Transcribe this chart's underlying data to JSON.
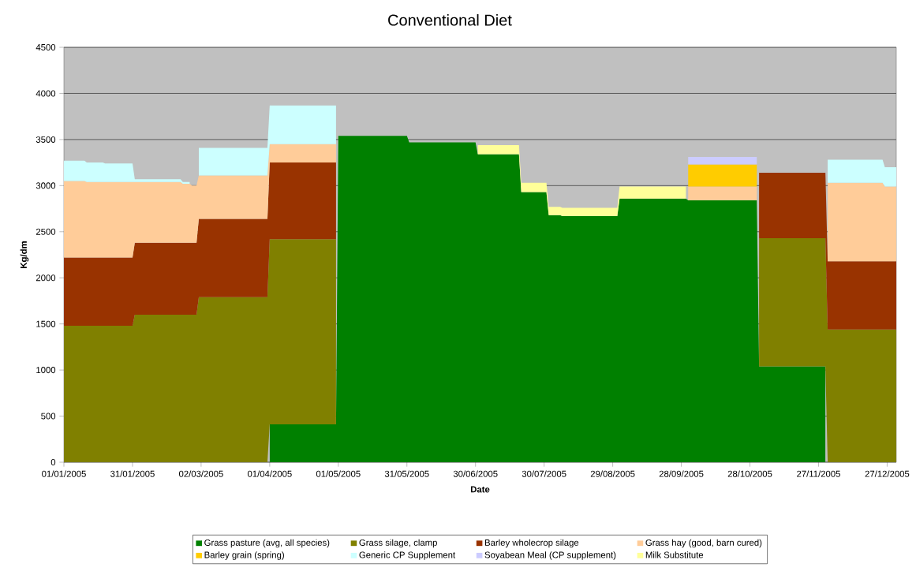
{
  "chart_data": {
    "type": "area",
    "stacked": true,
    "title": "Conventional Diet",
    "xlabel": "Date",
    "ylabel": "Kg/dm",
    "x": [
      "2005-01-01",
      "2005-01-10",
      "2005-01-11",
      "2005-01-18",
      "2005-01-19",
      "2005-01-31",
      "2005-02-01",
      "2005-02-21",
      "2005-02-22",
      "2005-02-25",
      "2005-02-26",
      "2005-02-28",
      "2005-03-01",
      "2005-03-31",
      "2005-04-01",
      "2005-04-30",
      "2005-05-01",
      "2005-05-31",
      "2005-06-01",
      "2005-06-30",
      "2005-07-01",
      "2005-07-19",
      "2005-07-20",
      "2005-07-31",
      "2005-08-01",
      "2005-08-06",
      "2005-08-07",
      "2005-08-31",
      "2005-09-01",
      "2005-09-30",
      "2005-10-01",
      "2005-10-31",
      "2005-11-01",
      "2005-11-30",
      "2005-12-01",
      "2005-12-25",
      "2005-12-26",
      "2005-12-31"
    ],
    "series": [
      {
        "name": "Grass pasture (avg, all species)",
        "color": "#008000",
        "values": [
          null,
          null,
          null,
          null,
          null,
          null,
          null,
          null,
          null,
          null,
          null,
          null,
          null,
          null,
          410,
          410,
          3540,
          3540,
          3470,
          3470,
          3340,
          3340,
          2930,
          2930,
          2680,
          2680,
          2670,
          2670,
          2860,
          2860,
          2840,
          2840,
          1040,
          1040,
          null,
          null,
          null,
          null
        ]
      },
      {
        "name": "Grass silage, clamp",
        "color": "#808000",
        "values": [
          1480,
          1480,
          1480,
          1480,
          1480,
          1480,
          1600,
          1600,
          1600,
          1600,
          1600,
          1600,
          1790,
          1790,
          2010,
          2010,
          null,
          null,
          null,
          null,
          null,
          null,
          null,
          null,
          null,
          null,
          null,
          null,
          null,
          null,
          null,
          null,
          1390,
          1390,
          1440,
          1440,
          1440,
          1440
        ]
      },
      {
        "name": "Barley wholecrop silage",
        "color": "#993300",
        "values": [
          740,
          740,
          740,
          740,
          740,
          740,
          780,
          780,
          780,
          780,
          780,
          780,
          850,
          850,
          830,
          830,
          null,
          null,
          null,
          null,
          null,
          null,
          null,
          null,
          null,
          null,
          null,
          null,
          null,
          null,
          null,
          null,
          710,
          710,
          740,
          740,
          740,
          740
        ]
      },
      {
        "name": "Grass hay (good, barn cured)",
        "color": "#ffcc99",
        "values": [
          830,
          830,
          820,
          820,
          820,
          820,
          660,
          660,
          640,
          640,
          620,
          620,
          470,
          470,
          200,
          200,
          null,
          null,
          null,
          null,
          null,
          null,
          null,
          null,
          null,
          null,
          null,
          null,
          null,
          null,
          150,
          150,
          null,
          null,
          850,
          850,
          810,
          810
        ]
      },
      {
        "name": "Barley grain (spring)",
        "color": "#ffcc00",
        "values": [
          null,
          null,
          null,
          null,
          null,
          null,
          null,
          null,
          null,
          null,
          null,
          null,
          null,
          null,
          null,
          null,
          null,
          null,
          null,
          null,
          null,
          null,
          null,
          null,
          null,
          null,
          null,
          null,
          null,
          null,
          240,
          240,
          null,
          null,
          null,
          null,
          null,
          null
        ]
      },
      {
        "name": "Generic CP Supplement",
        "color": "#ccffff",
        "values": [
          220,
          220,
          210,
          210,
          200,
          200,
          30,
          30,
          20,
          20,
          null,
          null,
          300,
          300,
          420,
          420,
          null,
          null,
          null,
          null,
          null,
          null,
          null,
          null,
          null,
          null,
          null,
          null,
          null,
          null,
          null,
          null,
          null,
          null,
          250,
          250,
          210,
          210
        ]
      },
      {
        "name": "Soyabean Meal (CP supplement)",
        "color": "#ccccff",
        "values": [
          null,
          null,
          null,
          null,
          null,
          null,
          null,
          null,
          null,
          null,
          null,
          null,
          null,
          null,
          null,
          null,
          null,
          null,
          null,
          null,
          null,
          null,
          null,
          null,
          null,
          null,
          null,
          null,
          null,
          null,
          80,
          80,
          null,
          null,
          null,
          null,
          null,
          null
        ]
      },
      {
        "name": "Milk Substitute",
        "color": "#ffff99",
        "values": [
          null,
          null,
          null,
          null,
          null,
          null,
          null,
          null,
          null,
          null,
          null,
          null,
          null,
          null,
          null,
          null,
          null,
          null,
          null,
          null,
          100,
          100,
          100,
          100,
          90,
          90,
          90,
          90,
          130,
          130,
          null,
          null,
          null,
          null,
          null,
          null,
          null,
          null
        ]
      }
    ],
    "xlim": [
      "2005-01-01",
      "2005-12-31"
    ],
    "xticks": [
      {
        "value": "2005-01-01",
        "label": "01/01/2005"
      },
      {
        "value": "2005-01-31",
        "label": "31/01/2005"
      },
      {
        "value": "2005-03-02",
        "label": "02/03/2005"
      },
      {
        "value": "2005-04-01",
        "label": "01/04/2005"
      },
      {
        "value": "2005-05-01",
        "label": "01/05/2005"
      },
      {
        "value": "2005-05-31",
        "label": "31/05/2005"
      },
      {
        "value": "2005-06-30",
        "label": "30/06/2005"
      },
      {
        "value": "2005-07-30",
        "label": "30/07/2005"
      },
      {
        "value": "2005-08-29",
        "label": "29/08/2005"
      },
      {
        "value": "2005-09-28",
        "label": "28/09/2005"
      },
      {
        "value": "2005-10-28",
        "label": "28/10/2005"
      },
      {
        "value": "2005-11-27",
        "label": "27/11/2005"
      },
      {
        "value": "2005-12-27",
        "label": "27/12/2005"
      }
    ],
    "ylim": [
      0,
      4500
    ],
    "yticks": [
      0,
      500,
      1000,
      1500,
      2000,
      2500,
      3000,
      3500,
      4000,
      4500
    ],
    "grid": "y",
    "legend": "bottom"
  }
}
